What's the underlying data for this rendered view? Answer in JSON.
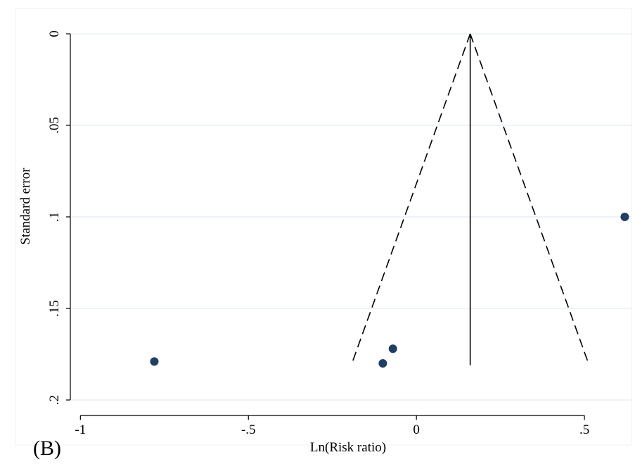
{
  "panel_label": "(B)",
  "chart_data": {
    "type": "scatter",
    "title": "",
    "xlabel": "Ln(Risk ratio)",
    "ylabel": "Standard error",
    "xlim": [
      -1.03,
      0.64
    ],
    "ylim": [
      0,
      0.2
    ],
    "y_reversed": true,
    "x_ticks": [
      {
        "value": -1,
        "label": "-1"
      },
      {
        "value": -0.5,
        "label": "-.5"
      },
      {
        "value": 0,
        "label": "0"
      },
      {
        "value": 0.5,
        "label": ".5"
      }
    ],
    "y_ticks": [
      {
        "value": 0,
        "label": "0"
      },
      {
        "value": 0.05,
        "label": ".05"
      },
      {
        "value": 0.1,
        "label": ".1"
      },
      {
        "value": 0.15,
        "label": ".15"
      },
      {
        "value": 0.2,
        "label": ".2"
      }
    ],
    "grid": "horizontal",
    "points": [
      {
        "x": -0.78,
        "y": 0.179
      },
      {
        "x": -0.1,
        "y": 0.18
      },
      {
        "x": -0.07,
        "y": 0.172
      },
      {
        "x": 0.62,
        "y": 0.1
      }
    ],
    "pooled_estimate": 0.16,
    "funnel": {
      "apex": [
        0.16,
        0
      ],
      "left_base": [
        -0.19,
        0.179
      ],
      "right_base": [
        0.51,
        0.179
      ],
      "line_style": "dashed"
    },
    "vertical_line": {
      "x": 0.16,
      "y_from": 0,
      "y_to": 0.181
    },
    "colors": {
      "marker": "#1f3f63",
      "grid": "#e3ecf0",
      "axis": "#000000",
      "background": "#ffffff",
      "plot_frame": "#eef3f5"
    }
  }
}
